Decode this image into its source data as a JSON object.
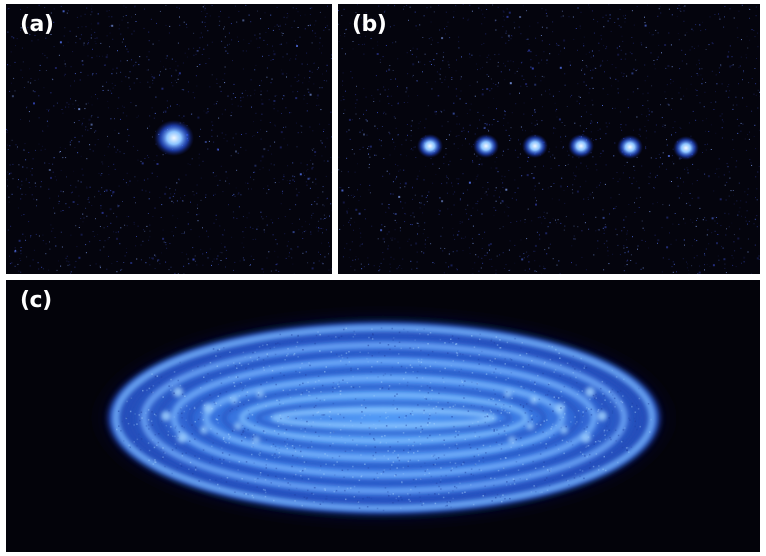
{
  "panels": {
    "a": {
      "label": "(a)",
      "ion_count": 1
    },
    "b": {
      "label": "(b)",
      "ion_count": 6
    },
    "c": {
      "label": "(c)"
    }
  },
  "colors": {
    "background": "#04040d",
    "ion_core": "#e8f4ff",
    "ion_glow": "#2a6bff",
    "cloud_bright": "#6fb8ff",
    "cloud_mid": "#2f6ee8",
    "cloud_dark": "#0a1a5c",
    "divider": "#ffffff"
  }
}
